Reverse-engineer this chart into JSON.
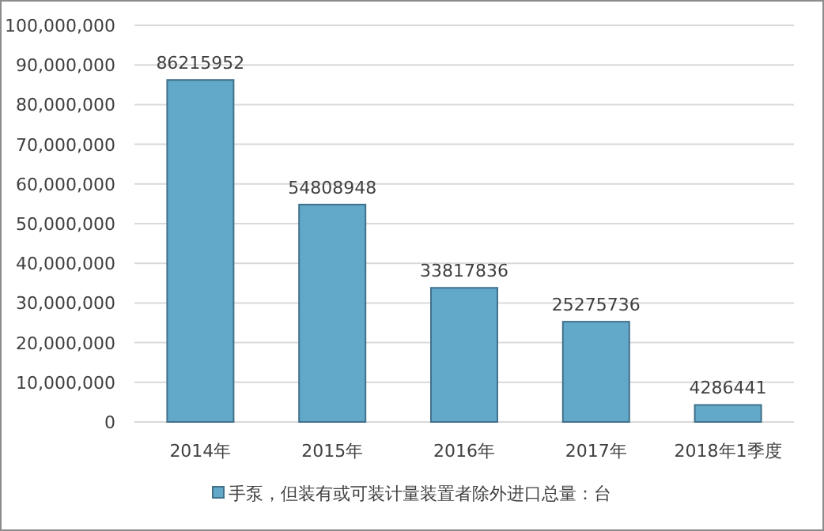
{
  "chart_data": {
    "type": "bar",
    "categories": [
      "2014年",
      "2015年",
      "2016年",
      "2017年",
      "2018年1季度"
    ],
    "series": [
      {
        "name": "手泵，但装有或可装计量装置者除外进口总量：台",
        "color": "#62a8c9",
        "values": [
          86215952,
          54808948,
          33817836,
          25275736,
          4286441
        ]
      }
    ],
    "ylim": [
      0,
      100000000
    ],
    "yticks": [
      0,
      {
        "value": 10000000,
        "label": "10,000,000"
      },
      {
        "value": 20000000,
        "label": "20,000,000"
      },
      {
        "value": 30000000,
        "label": "30,000,000"
      },
      {
        "value": 40000000,
        "label": "40,000,000"
      },
      {
        "value": 50000000,
        "label": "50,000,000"
      },
      {
        "value": 60000000,
        "label": "60,000,000"
      },
      {
        "value": 70000000,
        "label": "70,000,000"
      },
      {
        "value": 80000000,
        "label": "80,000,000"
      },
      {
        "value": 90000000,
        "label": "90,000,000"
      },
      {
        "value": 100000000,
        "label": "100,000,000"
      }
    ],
    "grid": "y",
    "legend": "bottom",
    "data_labels": true
  }
}
